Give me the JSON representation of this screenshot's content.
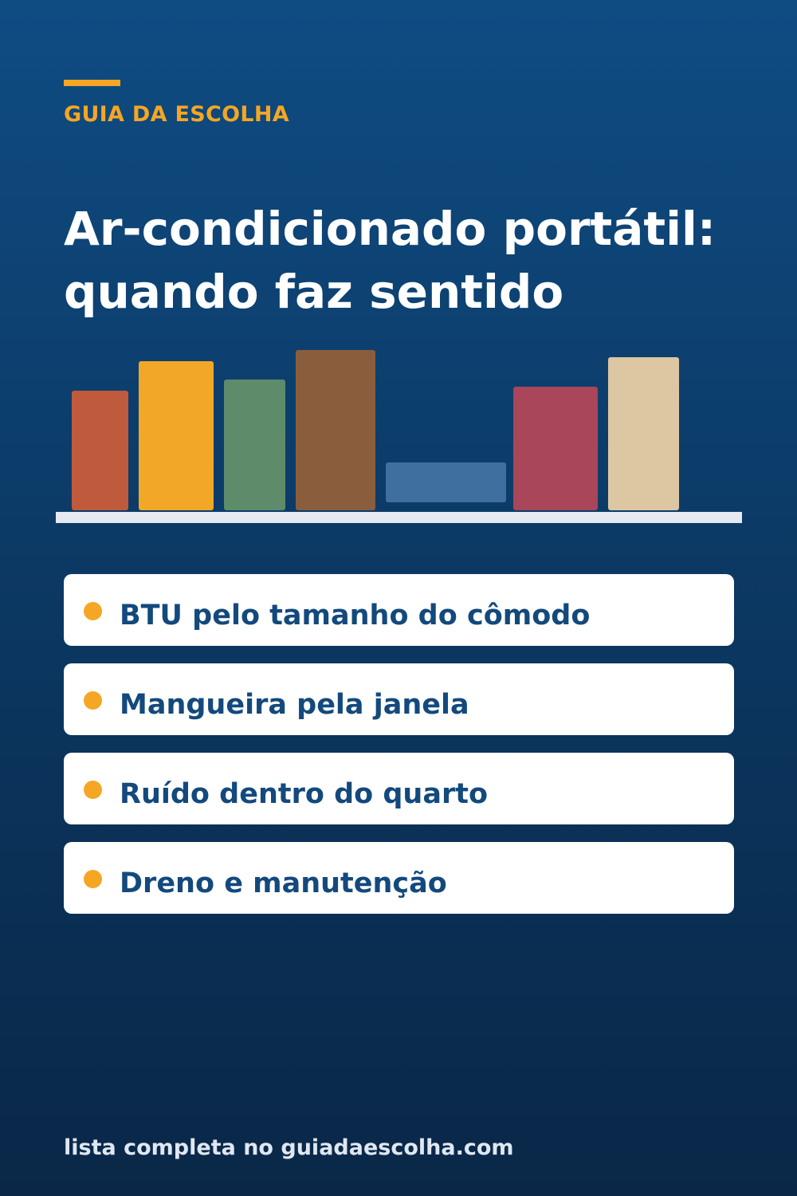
{
  "header": {
    "brand": "GUIA DA ESCOLHA",
    "title_line_1": "Ar-condicionado portátil:",
    "title_line_2": "quando faz sentido"
  },
  "illustration": {
    "books": [
      {
        "color": "#c05a3c"
      },
      {
        "color": "#f3a726"
      },
      {
        "color": "#5e8c6a"
      },
      {
        "color": "#8a5e3d"
      },
      {
        "color": "#3f6f9f"
      },
      {
        "color": "#a94659"
      },
      {
        "color": "#dcc7a2"
      }
    ],
    "shelf_color": "#e6e9ef"
  },
  "bullets": [
    {
      "text": "BTU pelo tamanho do cômodo"
    },
    {
      "text": "Mangueira pela janela"
    },
    {
      "text": "Ruído dentro do quarto"
    },
    {
      "text": "Dreno e manutenção"
    }
  ],
  "footer": {
    "text": "lista completa no guiadaescolha.com"
  },
  "colors": {
    "background_top": "#0f4c83",
    "background_bottom": "#0a2747",
    "accent": "#f5a623",
    "card": "#ffffff",
    "card_text": "#13497d"
  }
}
